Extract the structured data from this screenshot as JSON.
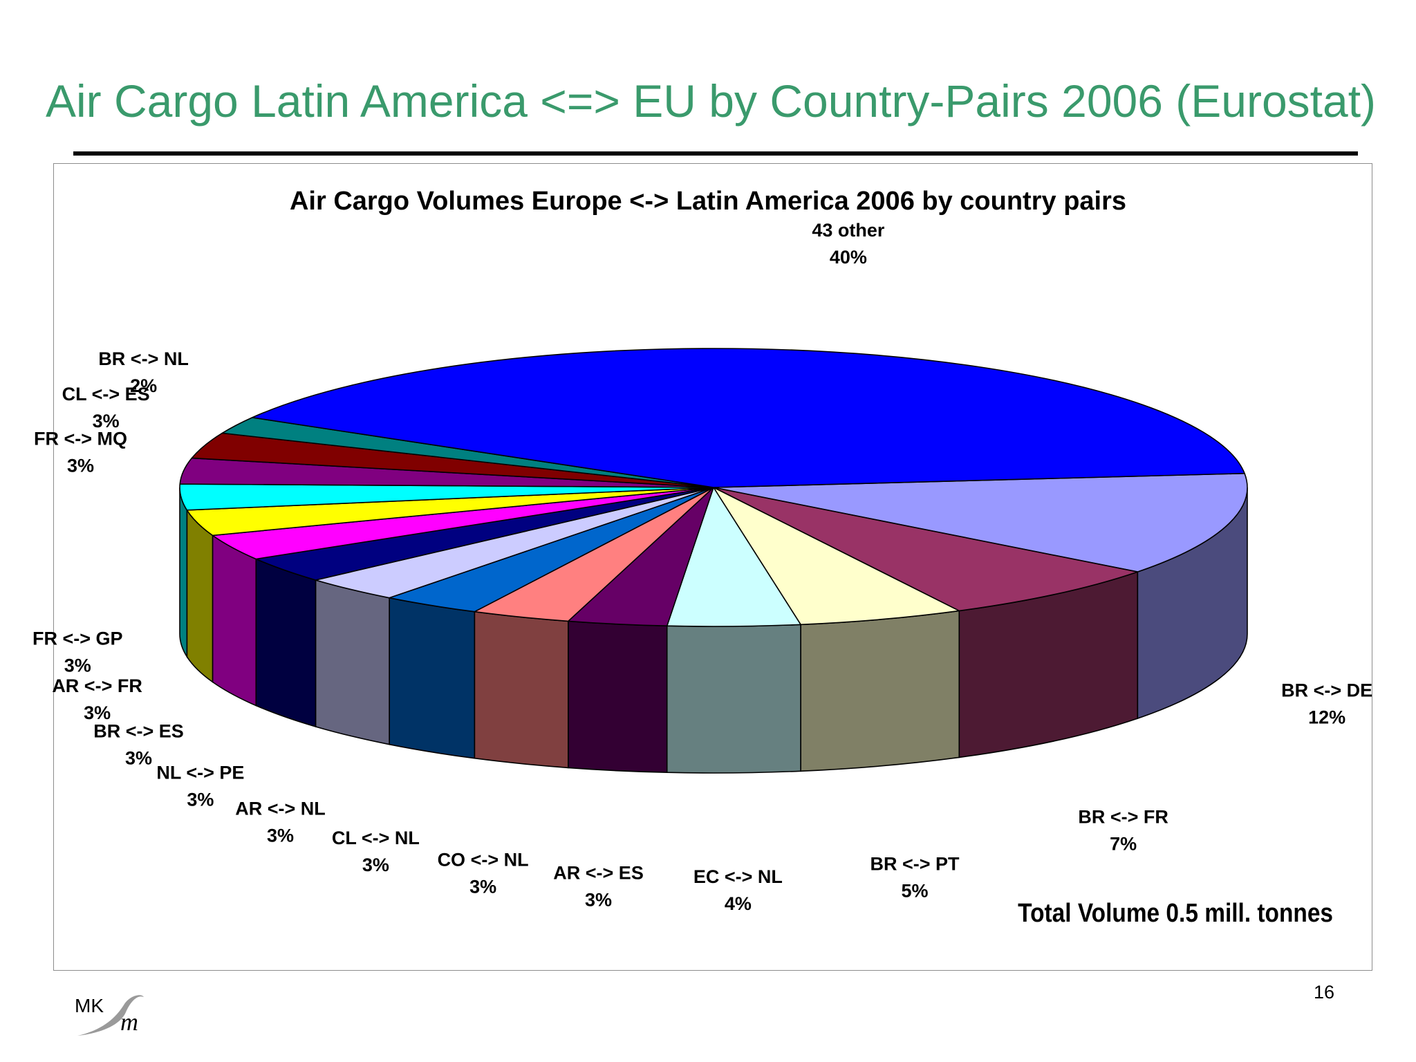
{
  "slide": {
    "title": "Air Cargo Latin America <=> EU by Country-Pairs 2006 (Eurostat)",
    "page_number": "16",
    "total_note": "Total Volume 0.5 mill. tonnes",
    "logo_text": "MKm",
    "title_color": "#3a9a6c"
  },
  "chart_data": {
    "type": "pie",
    "title": "Air Cargo Volumes Europe <-> Latin America 2006 by country pairs",
    "three_d": true,
    "slices": [
      {
        "label": "BR <-> DE",
        "value": 12,
        "pct": "12%",
        "color": "#9999ff",
        "side_color": "#4b4b7d"
      },
      {
        "label": "BR <-> FR",
        "value": 7,
        "pct": "7%",
        "color": "#993366",
        "side_color": "#4d1a33"
      },
      {
        "label": "BR <-> PT",
        "value": 5,
        "pct": "5%",
        "color": "#ffffcc",
        "side_color": "#808066"
      },
      {
        "label": "EC <-> NL",
        "value": 4,
        "pct": "4%",
        "color": "#ccffff",
        "side_color": "#668080"
      },
      {
        "label": "AR <-> ES",
        "value": 3,
        "pct": "3%",
        "color": "#660066",
        "side_color": "#330033"
      },
      {
        "label": "CO <-> NL",
        "value": 3,
        "pct": "3%",
        "color": "#ff8080",
        "side_color": "#804040"
      },
      {
        "label": "CL <-> NL",
        "value": 3,
        "pct": "3%",
        "color": "#0066cc",
        "side_color": "#003366"
      },
      {
        "label": "AR <-> NL",
        "value": 3,
        "pct": "3%",
        "color": "#ccccff",
        "side_color": "#666680"
      },
      {
        "label": "NL <-> PE",
        "value": 3,
        "pct": "3%",
        "color": "#000080",
        "side_color": "#000040"
      },
      {
        "label": "BR <-> ES",
        "value": 3,
        "pct": "3%",
        "color": "#ff00ff",
        "side_color": "#800080"
      },
      {
        "label": "AR <-> FR",
        "value": 3,
        "pct": "3%",
        "color": "#ffff00",
        "side_color": "#808000"
      },
      {
        "label": "FR <-> GP",
        "value": 3,
        "pct": "3%",
        "color": "#00ffff",
        "side_color": "#008080"
      },
      {
        "label": "FR <-> MQ",
        "value": 3,
        "pct": "3%",
        "color": "#800080",
        "side_color": "#400040"
      },
      {
        "label": "CL <-> ES",
        "value": 3,
        "pct": "3%",
        "color": "#800000",
        "side_color": "#400000"
      },
      {
        "label": "BR <-> NL",
        "value": 2,
        "pct": "2%",
        "color": "#008080",
        "side_color": "#004040"
      },
      {
        "label": "43 other",
        "value": 40,
        "pct": "40%",
        "color": "#0000ff",
        "side_color": "#000080"
      }
    ]
  }
}
